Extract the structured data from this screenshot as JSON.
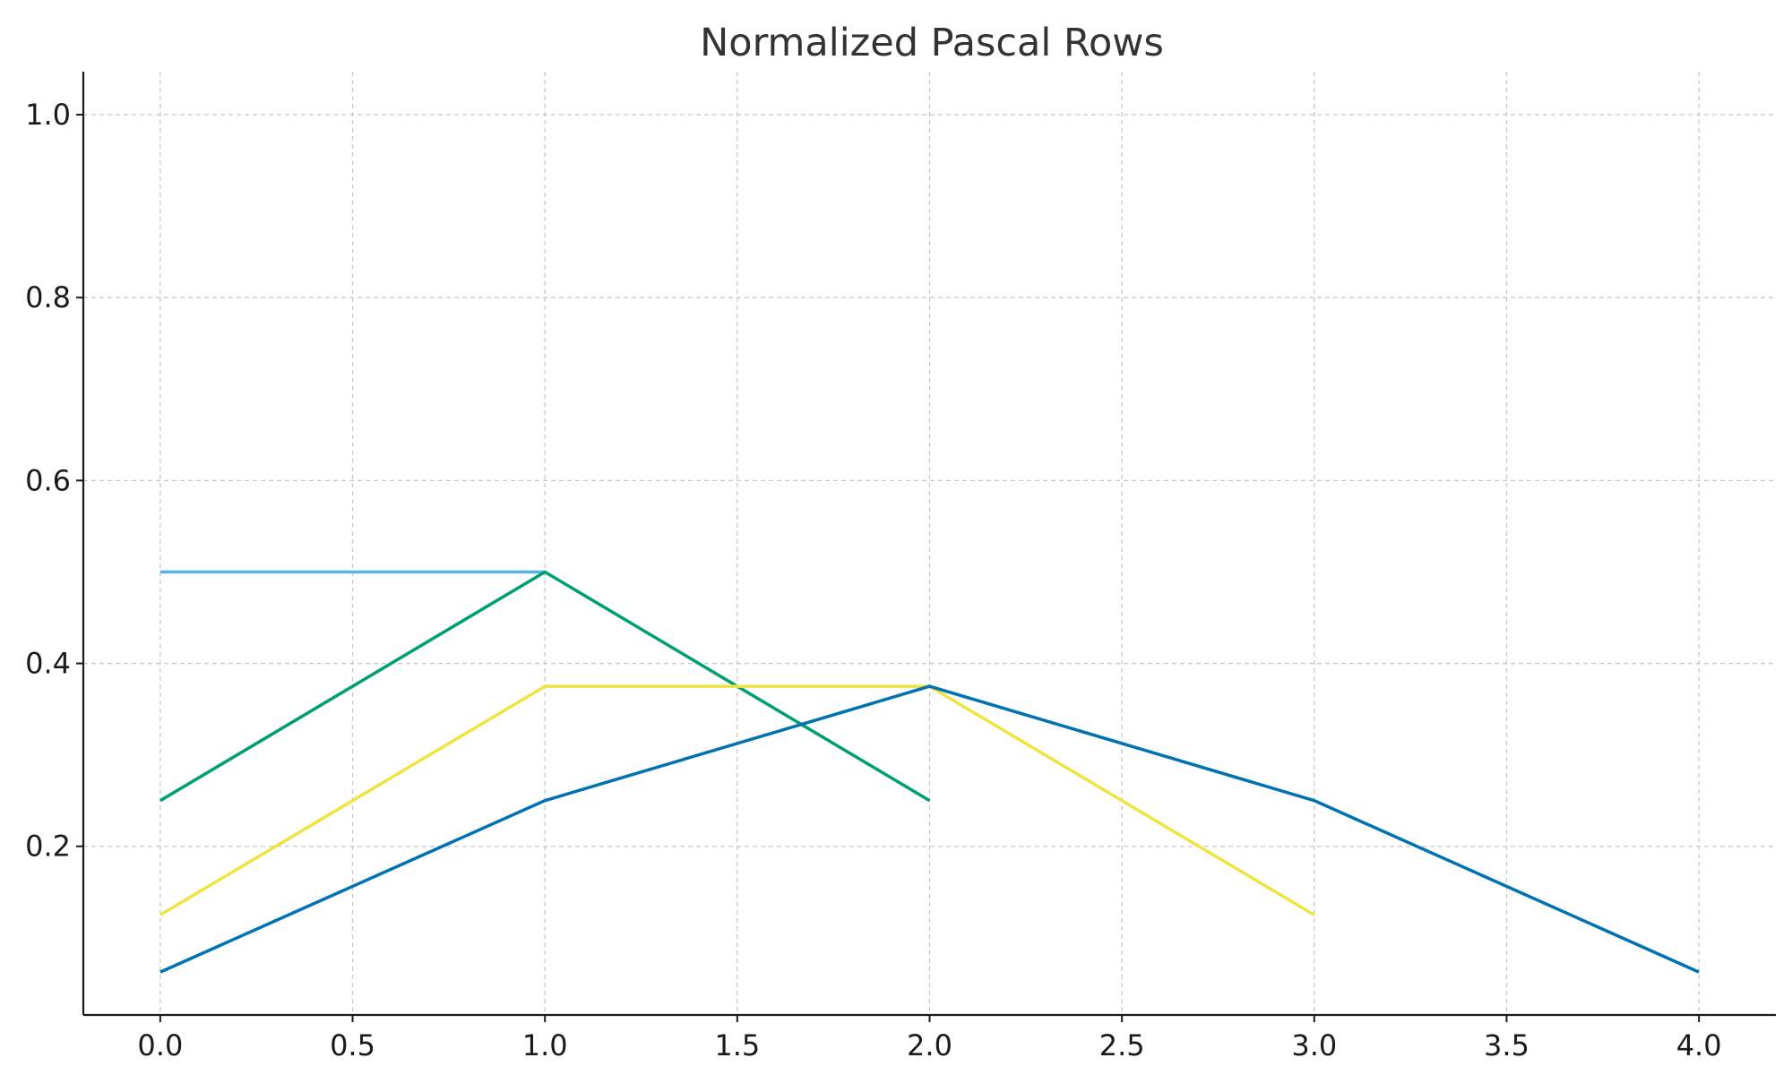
{
  "chart_data": {
    "type": "line",
    "title": "Normalized Pascal Rows",
    "xlabel": "",
    "ylabel": "",
    "xlim": [
      -0.2,
      4.2
    ],
    "ylim": [
      0.0156,
      1.047
    ],
    "x_ticks": [
      0.0,
      0.5,
      1.0,
      1.5,
      2.0,
      2.5,
      3.0,
      3.5,
      4.0
    ],
    "x_tick_labels": [
      "0.0",
      "0.5",
      "1.0",
      "1.5",
      "2.0",
      "2.5",
      "3.0",
      "3.5",
      "4.0"
    ],
    "y_ticks": [
      0.2,
      0.4,
      0.6,
      0.8,
      1.0
    ],
    "y_tick_labels": [
      "0.2",
      "0.4",
      "0.6",
      "0.8",
      "1.0"
    ],
    "grid": true,
    "legend": false,
    "series": [
      {
        "color": "#56B4E9",
        "x": [
          0,
          1
        ],
        "y": [
          0.5,
          0.5
        ]
      },
      {
        "color": "#009E73",
        "x": [
          0,
          1,
          2
        ],
        "y": [
          0.25,
          0.5,
          0.25
        ]
      },
      {
        "color": "#F0E442",
        "x": [
          0,
          1,
          2,
          3
        ],
        "y": [
          0.125,
          0.375,
          0.375,
          0.125
        ]
      },
      {
        "color": "#0072B2",
        "x": [
          0,
          1,
          2,
          3,
          4
        ],
        "y": [
          0.0625,
          0.25,
          0.375,
          0.25,
          0.0625
        ]
      }
    ]
  }
}
